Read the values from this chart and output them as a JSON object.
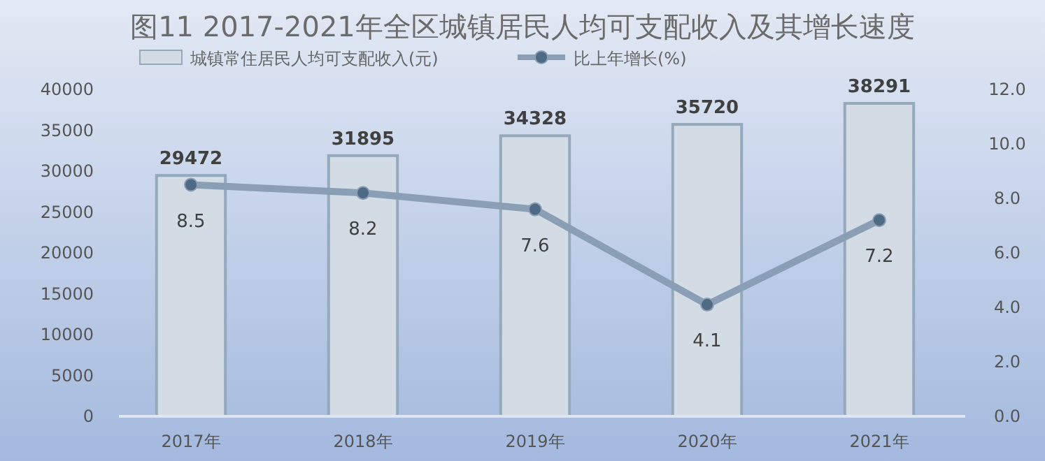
{
  "chart_data": {
    "type": "bar",
    "title": "图11  2017-2021年全区城镇居民人均可支配收入及其增长速度",
    "categories": [
      "2017年",
      "2018年",
      "2019年",
      "2020年",
      "2021年"
    ],
    "series": [
      {
        "name": "城镇常住居民人均可支配收入(元)",
        "color": "#d3dbe4",
        "values": [
          29472,
          31895,
          34328,
          35720,
          38291
        ]
      },
      {
        "name": "比上年增长(%)",
        "type": "line",
        "axis": "y2",
        "color": "#8a9fb5",
        "values": [
          8.5,
          8.2,
          7.6,
          4.1,
          7.2
        ],
        "marker": "circle"
      }
    ],
    "ylim": [
      0,
      40000
    ],
    "yticks": [
      0,
      5000,
      10000,
      15000,
      20000,
      25000,
      30000,
      35000,
      40000
    ],
    "y2lim": [
      0,
      12
    ],
    "y2ticks": [
      {
        "value": 0,
        "label": "0.0"
      },
      {
        "value": 2,
        "label": "2.0"
      },
      {
        "value": 4,
        "label": "4.0"
      },
      {
        "value": 6,
        "label": "6.0"
      },
      {
        "value": 8,
        "label": "8.0"
      },
      {
        "value": 10,
        "label": "10.0"
      },
      {
        "value": 12,
        "label": "12.0"
      }
    ],
    "data_labels": true,
    "grid": false,
    "legend": "top"
  }
}
